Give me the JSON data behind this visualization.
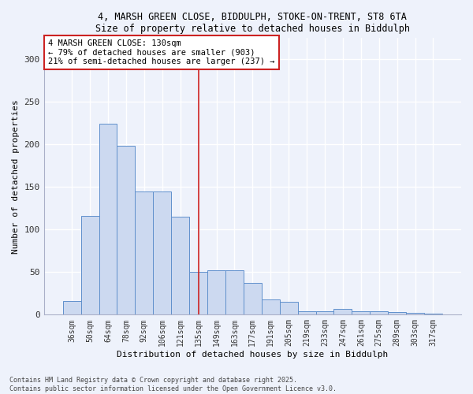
{
  "title_line1": "4, MARSH GREEN CLOSE, BIDDULPH, STOKE-ON-TRENT, ST8 6TA",
  "title_line2": "Size of property relative to detached houses in Biddulph",
  "categories": [
    "36sqm",
    "50sqm",
    "64sqm",
    "78sqm",
    "92sqm",
    "106sqm",
    "121sqm",
    "135sqm",
    "149sqm",
    "163sqm",
    "177sqm",
    "191sqm",
    "205sqm",
    "219sqm",
    "233sqm",
    "247sqm",
    "261sqm",
    "275sqm",
    "289sqm",
    "303sqm",
    "317sqm"
  ],
  "values": [
    16,
    116,
    224,
    198,
    145,
    145,
    115,
    50,
    52,
    52,
    37,
    18,
    15,
    4,
    4,
    7,
    4,
    4,
    3,
    2,
    1
  ],
  "bar_color": "#ccd9f0",
  "bar_edge_color": "#6090cc",
  "xlabel": "Distribution of detached houses by size in Biddulph",
  "ylabel": "Number of detached properties",
  "ylim": [
    0,
    325
  ],
  "yticks": [
    0,
    50,
    100,
    150,
    200,
    250,
    300
  ],
  "vline_x": 7,
  "annotation_line1": "4 MARSH GREEN CLOSE: 130sqm",
  "annotation_line2": "← 79% of detached houses are smaller (903)",
  "annotation_line3": "21% of semi-detached houses are larger (237) →",
  "footer_line1": "Contains HM Land Registry data © Crown copyright and database right 2025.",
  "footer_line2": "Contains public sector information licensed under the Open Government Licence v3.0.",
  "background_color": "#eef2fb",
  "grid_color": "#d8dff0"
}
